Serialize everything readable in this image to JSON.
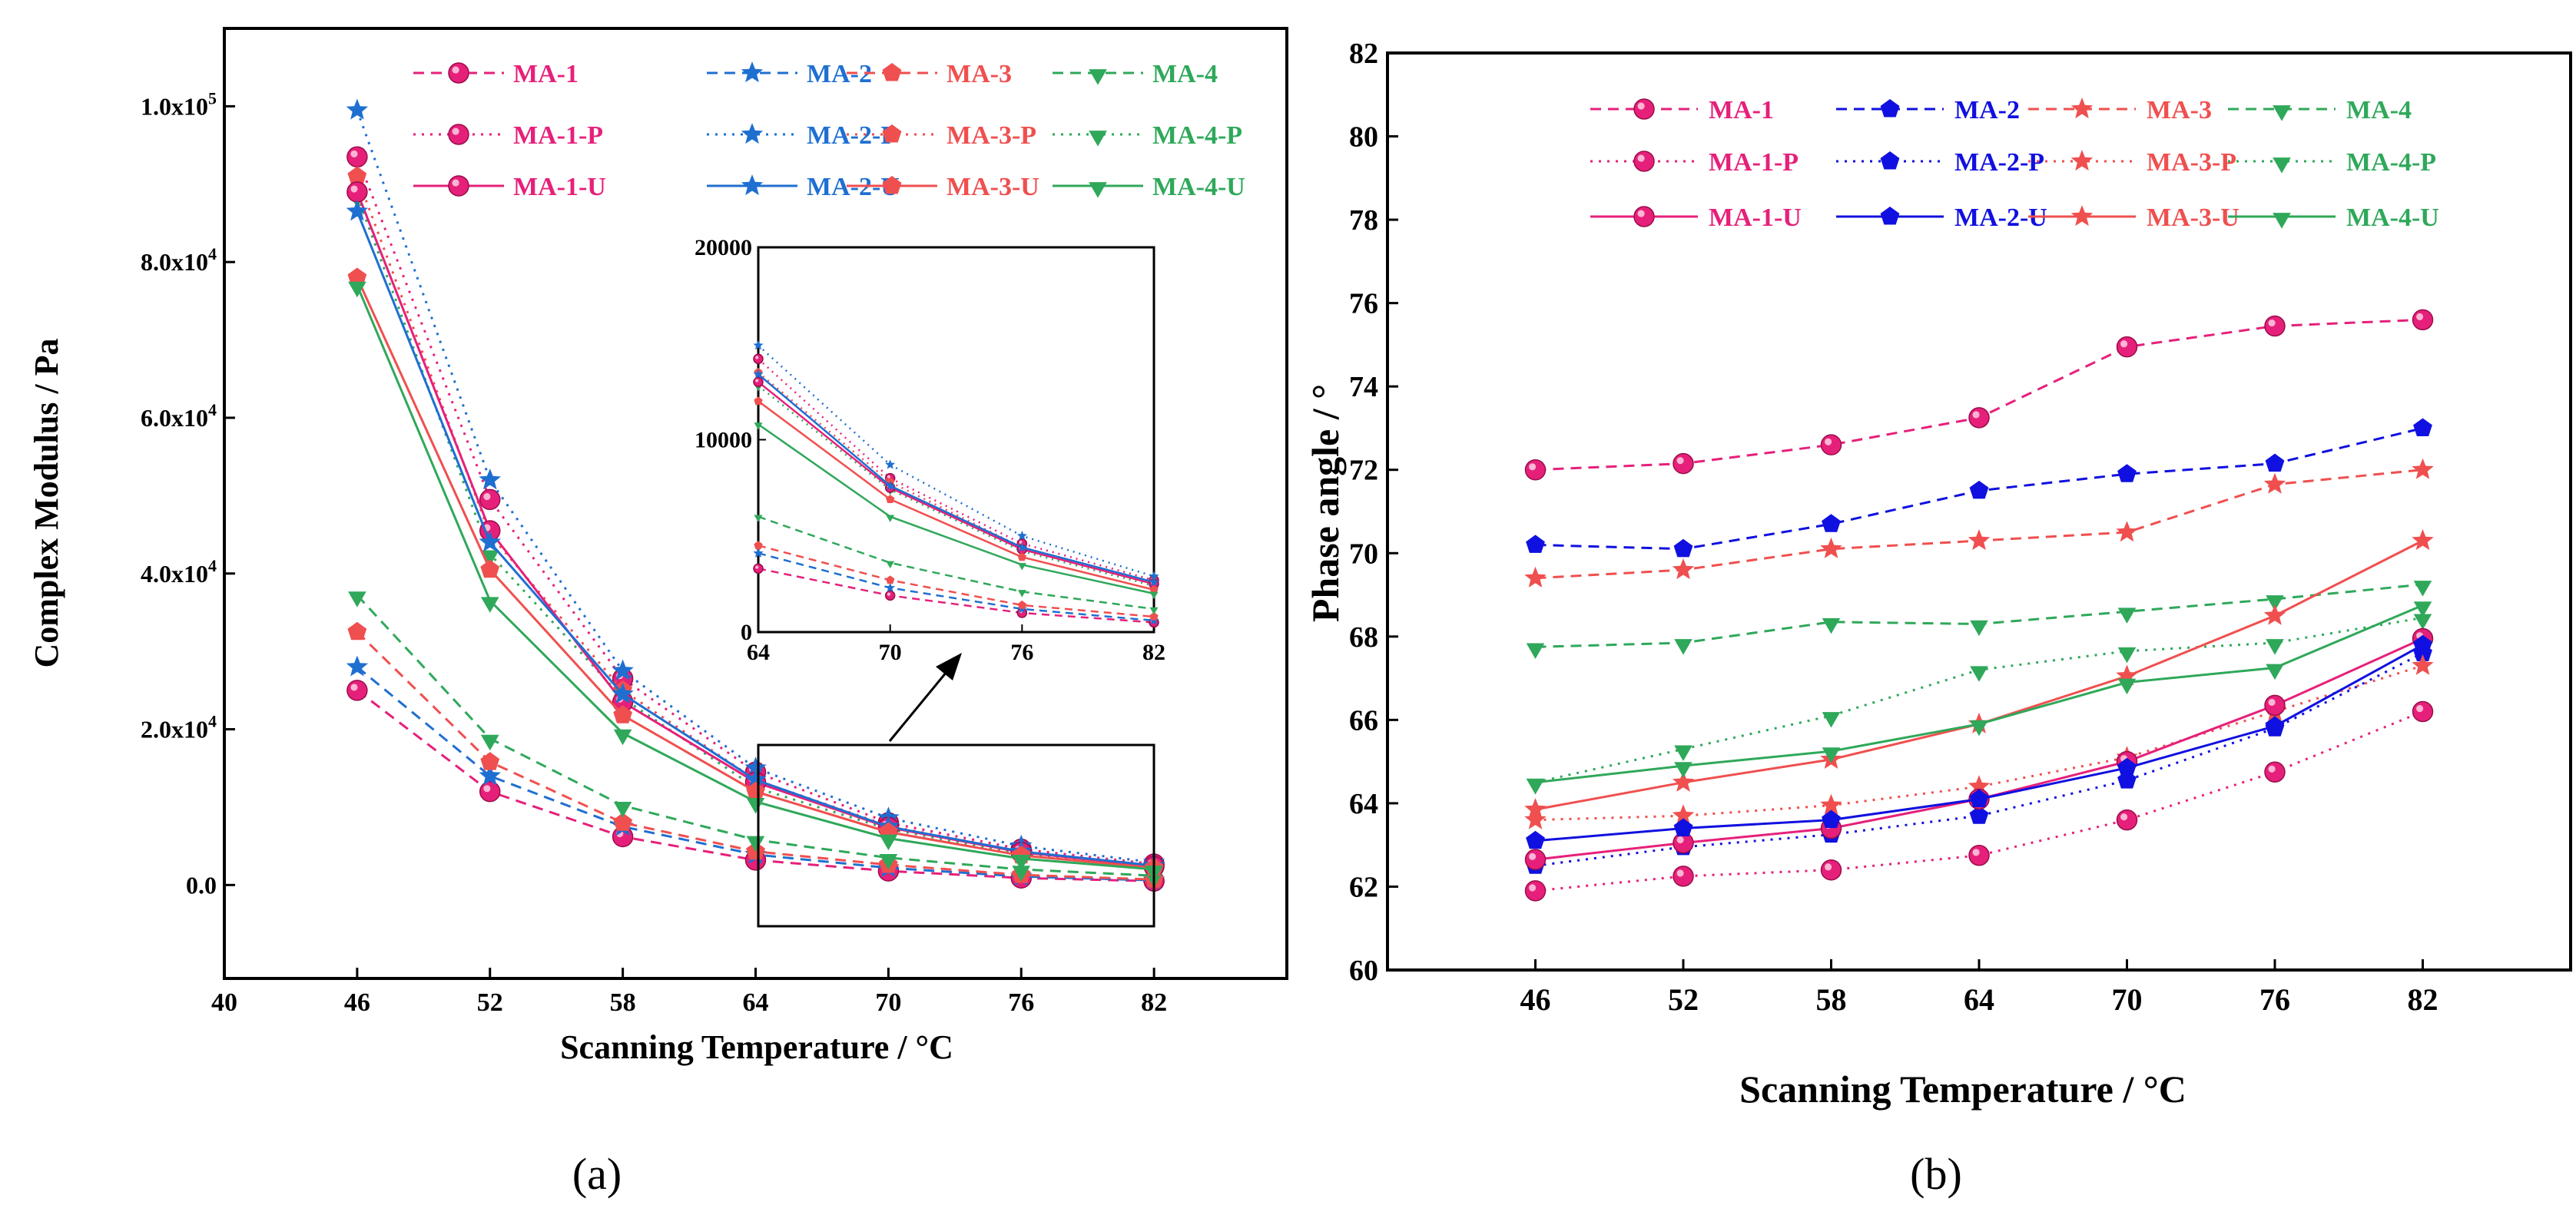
{
  "colors": {
    "MA-1": "#e6207a",
    "MA-2": "#1f6fd1",
    "MA-3": "#f04f4f",
    "MA-4": "#2fa85a",
    "MA-2-bold": "#1010e0"
  },
  "chart_data": [
    {
      "type": "line",
      "panel": "(a)",
      "xlabel": "Scanning Temperature / °C",
      "ylabel": "Complex Modulus / Pa",
      "xlim": [
        40,
        88
      ],
      "ylim": [
        -12000,
        110000
      ],
      "xticks": [
        40,
        46,
        52,
        58,
        64,
        70,
        76,
        82
      ],
      "yticks": [
        0,
        20000,
        40000,
        60000,
        80000,
        100000
      ],
      "yticklabels": [
        "0.0",
        "2.0x10^4",
        "4.0x10^4",
        "6.0x10^4",
        "8.0x10^4",
        "1.0x10^5"
      ],
      "x": [
        46,
        52,
        58,
        64,
        70,
        76,
        82
      ],
      "series": [
        {
          "name": "MA-1",
          "values": [
            25000,
            12000,
            6200,
            3200,
            1800,
            900,
            500
          ]
        },
        {
          "name": "MA-2",
          "values": [
            28000,
            14000,
            7500,
            3900,
            2200,
            1100,
            600
          ]
        },
        {
          "name": "MA-3",
          "values": [
            32500,
            15800,
            8000,
            4300,
            2600,
            1300,
            700
          ]
        },
        {
          "name": "MA-4",
          "values": [
            37200,
            18800,
            10200,
            5800,
            3500,
            2000,
            1200
          ]
        },
        {
          "name": "MA-1-P",
          "values": [
            93500,
            49500,
            26500,
            14500,
            8000,
            4600,
            2700
          ]
        },
        {
          "name": "MA-2-P",
          "values": [
            99500,
            52000,
            27500,
            15000,
            8600,
            5000,
            2900
          ]
        },
        {
          "name": "MA-3-P",
          "values": [
            91000,
            45000,
            25000,
            13500,
            7600,
            4300,
            2500
          ]
        },
        {
          "name": "MA-4-P",
          "values": [
            88500,
            42500,
            24000,
            12500,
            7200,
            4000,
            2300
          ]
        },
        {
          "name": "MA-1-U",
          "values": [
            89000,
            45500,
            23500,
            13200,
            7400,
            4200,
            2400
          ]
        },
        {
          "name": "MA-2-U",
          "values": [
            86500,
            44000,
            24500,
            13500,
            7500,
            4300,
            2500
          ]
        },
        {
          "name": "MA-3-U",
          "values": [
            78000,
            40500,
            21800,
            12000,
            6800,
            3800,
            2200
          ]
        },
        {
          "name": "MA-4-U",
          "values": [
            77000,
            36500,
            19500,
            10700,
            6000,
            3400,
            2000
          ]
        }
      ],
      "legend": [
        "MA-1",
        "MA-2",
        "MA-3",
        "MA-4",
        "MA-1-P",
        "MA-2-P",
        "MA-3-P",
        "MA-4-P",
        "MA-1-U",
        "MA-2-U",
        "MA-3-U",
        "MA-4-U"
      ],
      "inset": {
        "xlim": [
          64,
          82
        ],
        "ylim": [
          0,
          20000
        ],
        "xticks": [
          64,
          70,
          76,
          82
        ],
        "yticks": [
          0,
          10000,
          20000
        ],
        "yticklabels": [
          "0",
          "10000",
          "20000"
        ],
        "x": [
          64,
          70,
          76,
          82
        ],
        "series": [
          {
            "name": "MA-1",
            "values": [
              3300,
              1900,
              1000,
              500
            ]
          },
          {
            "name": "MA-2",
            "values": [
              4100,
              2300,
              1200,
              600
            ]
          },
          {
            "name": "MA-3",
            "values": [
              4500,
              2700,
              1400,
              800
            ]
          },
          {
            "name": "MA-4",
            "values": [
              6000,
              3600,
              2100,
              1200
            ]
          },
          {
            "name": "MA-1-P",
            "values": [
              14200,
              8000,
              4600,
              2700
            ]
          },
          {
            "name": "MA-2-P",
            "values": [
              14900,
              8700,
              5000,
              2900
            ]
          },
          {
            "name": "MA-3-P",
            "values": [
              13500,
              7800,
              4400,
              2600
            ]
          },
          {
            "name": "MA-4-P",
            "values": [
              12800,
              7400,
              4200,
              2400
            ]
          },
          {
            "name": "MA-1-U",
            "values": [
              13000,
              7500,
              4300,
              2500
            ]
          },
          {
            "name": "MA-2-U",
            "values": [
              13400,
              7600,
              4400,
              2600
            ]
          },
          {
            "name": "MA-3-U",
            "values": [
              12000,
              6900,
              3900,
              2200
            ]
          },
          {
            "name": "MA-4-U",
            "values": [
              10800,
              6000,
              3500,
              2000
            ]
          }
        ]
      }
    },
    {
      "type": "line",
      "panel": "(b)",
      "xlabel": "Scanning Temperature / °C",
      "ylabel": "Phase angle / °",
      "xlim": [
        40,
        88
      ],
      "ylim": [
        60,
        82
      ],
      "xticks": [
        46,
        52,
        58,
        64,
        70,
        76,
        82
      ],
      "yticks": [
        60,
        62,
        64,
        66,
        68,
        70,
        72,
        74,
        76,
        78,
        80,
        82
      ],
      "x": [
        46,
        52,
        58,
        64,
        70,
        76,
        82
      ],
      "series": [
        {
          "name": "MA-1",
          "values": [
            72.0,
            72.15,
            72.6,
            73.25,
            74.95,
            75.45,
            75.6
          ]
        },
        {
          "name": "MA-2",
          "values": [
            70.2,
            70.1,
            70.7,
            71.5,
            71.9,
            72.15,
            73.0
          ]
        },
        {
          "name": "MA-3",
          "values": [
            69.4,
            69.6,
            70.1,
            70.3,
            70.5,
            71.65,
            72.0
          ]
        },
        {
          "name": "MA-4",
          "values": [
            67.75,
            67.85,
            68.35,
            68.3,
            68.6,
            68.9,
            69.25
          ]
        },
        {
          "name": "MA-1-P",
          "values": [
            61.9,
            62.25,
            62.4,
            62.75,
            63.6,
            64.75,
            66.2
          ]
        },
        {
          "name": "MA-2-P",
          "values": [
            62.5,
            62.95,
            63.25,
            63.7,
            64.55,
            65.8,
            67.6
          ]
        },
        {
          "name": "MA-3-P",
          "values": [
            63.6,
            63.7,
            63.95,
            64.4,
            65.1,
            66.2,
            67.3
          ]
        },
        {
          "name": "MA-4-P",
          "values": [
            64.5,
            65.3,
            66.1,
            67.2,
            67.65,
            67.85,
            68.45
          ]
        },
        {
          "name": "MA-1-U",
          "values": [
            62.65,
            63.05,
            63.4,
            64.1,
            65.0,
            66.35,
            67.95
          ]
        },
        {
          "name": "MA-2-U",
          "values": [
            63.1,
            63.4,
            63.6,
            64.1,
            64.85,
            65.85,
            67.8
          ]
        },
        {
          "name": "MA-3-U",
          "values": [
            63.85,
            64.5,
            65.05,
            65.9,
            67.05,
            68.5,
            70.3
          ]
        },
        {
          "name": "MA-4-U",
          "values": [
            64.5,
            64.9,
            65.25,
            65.9,
            66.9,
            67.25,
            68.75
          ]
        }
      ],
      "legend": [
        "MA-1",
        "MA-2",
        "MA-3",
        "MA-4",
        "MA-1-P",
        "MA-2-P",
        "MA-3-P",
        "MA-4-P",
        "MA-1-U",
        "MA-2-U",
        "MA-3-U",
        "MA-4-U"
      ]
    }
  ],
  "captions": {
    "a": "(a)",
    "b": "(b)"
  }
}
